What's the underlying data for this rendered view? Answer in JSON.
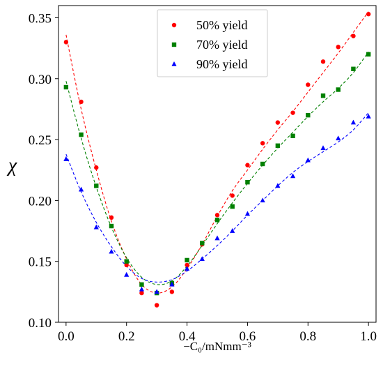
{
  "chart_data": {
    "type": "scatter",
    "xlabel": "−C₀/mNmm⁻³",
    "ylabel": "χ",
    "xlim": [
      -0.025,
      1.025
    ],
    "ylim": [
      0.1,
      0.36
    ],
    "xticks": [
      "0.0",
      "0.2",
      "0.4",
      "0.6",
      "0.8",
      "1.0"
    ],
    "yticks": [
      "0.10",
      "0.15",
      "0.20",
      "0.25",
      "0.30",
      "0.35"
    ],
    "grid": false,
    "legend_position": "top-center",
    "x": [
      0.0,
      0.05,
      0.1,
      0.15,
      0.2,
      0.25,
      0.3,
      0.35,
      0.4,
      0.45,
      0.5,
      0.55,
      0.6,
      0.65,
      0.7,
      0.75,
      0.8,
      0.85,
      0.9,
      0.95,
      1.0
    ],
    "series": [
      {
        "name": "50% yield",
        "marker": "circle",
        "color": "#ff0000",
        "values": [
          0.33,
          0.281,
          0.227,
          0.186,
          0.147,
          0.124,
          0.114,
          0.125,
          0.147,
          0.164,
          0.188,
          0.204,
          0.229,
          0.247,
          0.264,
          0.272,
          0.295,
          0.314,
          0.326,
          0.335,
          0.353
        ],
        "fit": [
          [
            0.0,
            0.336
          ],
          [
            0.05,
            0.275
          ],
          [
            0.1,
            0.225
          ],
          [
            0.15,
            0.183
          ],
          [
            0.2,
            0.152
          ],
          [
            0.25,
            0.131
          ],
          [
            0.3,
            0.124
          ],
          [
            0.35,
            0.129
          ],
          [
            0.4,
            0.144
          ],
          [
            0.45,
            0.164
          ],
          [
            0.5,
            0.187
          ],
          [
            0.55,
            0.208
          ],
          [
            0.6,
            0.225
          ],
          [
            0.65,
            0.242
          ],
          [
            0.7,
            0.258
          ],
          [
            0.75,
            0.273
          ],
          [
            0.8,
            0.289
          ],
          [
            0.85,
            0.305
          ],
          [
            0.9,
            0.321
          ],
          [
            0.95,
            0.338
          ],
          [
            1.0,
            0.355
          ]
        ]
      },
      {
        "name": "70% yield",
        "marker": "square",
        "color": "#008000",
        "values": [
          0.293,
          0.254,
          0.212,
          0.179,
          0.15,
          0.131,
          0.124,
          0.132,
          0.151,
          0.165,
          0.184,
          0.195,
          0.215,
          0.23,
          0.245,
          0.253,
          0.27,
          0.286,
          0.291,
          0.308,
          0.32
        ],
        "fit": [
          [
            0.0,
            0.298
          ],
          [
            0.05,
            0.251
          ],
          [
            0.1,
            0.211
          ],
          [
            0.15,
            0.178
          ],
          [
            0.2,
            0.153
          ],
          [
            0.25,
            0.137
          ],
          [
            0.3,
            0.131
          ],
          [
            0.35,
            0.134
          ],
          [
            0.4,
            0.146
          ],
          [
            0.45,
            0.163
          ],
          [
            0.5,
            0.181
          ],
          [
            0.55,
            0.198
          ],
          [
            0.6,
            0.214
          ],
          [
            0.65,
            0.229
          ],
          [
            0.7,
            0.243
          ],
          [
            0.75,
            0.256
          ],
          [
            0.8,
            0.269
          ],
          [
            0.85,
            0.281
          ],
          [
            0.9,
            0.292
          ],
          [
            0.95,
            0.305
          ],
          [
            1.0,
            0.322
          ]
        ]
      },
      {
        "name": "90% yield",
        "marker": "triangle",
        "color": "#0000ff",
        "values": [
          0.234,
          0.209,
          0.178,
          0.158,
          0.139,
          0.127,
          0.125,
          0.131,
          0.144,
          0.152,
          0.169,
          0.175,
          0.189,
          0.2,
          0.212,
          0.22,
          0.233,
          0.243,
          0.251,
          0.264,
          0.269
        ],
        "fit": [
          [
            0.0,
            0.238
          ],
          [
            0.05,
            0.207
          ],
          [
            0.1,
            0.182
          ],
          [
            0.15,
            0.162
          ],
          [
            0.2,
            0.146
          ],
          [
            0.25,
            0.136
          ],
          [
            0.3,
            0.133
          ],
          [
            0.35,
            0.135
          ],
          [
            0.4,
            0.142
          ],
          [
            0.45,
            0.152
          ],
          [
            0.5,
            0.163
          ],
          [
            0.55,
            0.175
          ],
          [
            0.6,
            0.188
          ],
          [
            0.65,
            0.2
          ],
          [
            0.7,
            0.212
          ],
          [
            0.75,
            0.223
          ],
          [
            0.8,
            0.232
          ],
          [
            0.85,
            0.24
          ],
          [
            0.9,
            0.248
          ],
          [
            0.95,
            0.258
          ],
          [
            1.0,
            0.272
          ]
        ]
      }
    ]
  }
}
